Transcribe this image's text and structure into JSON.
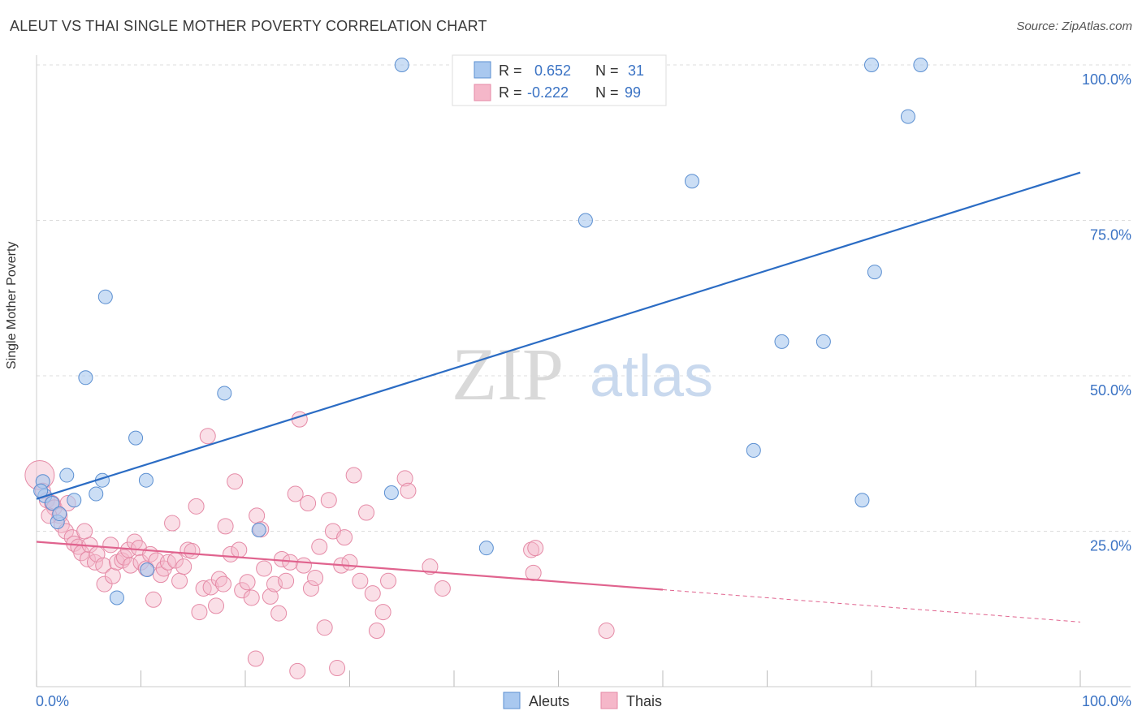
{
  "header": {
    "title": "ALEUT VS THAI SINGLE MOTHER POVERTY CORRELATION CHART",
    "source": "Source: ZipAtlas.com"
  },
  "watermark": {
    "zip": "ZIP",
    "atlas": "atlas"
  },
  "legend_top": {
    "rows": [
      {
        "r_label": "R =",
        "r_value": "0.652",
        "n_label": "N =",
        "n_value": "31",
        "color": "#a9c8ef"
      },
      {
        "r_label": "R =",
        "r_value": "-0.222",
        "n_label": "N =",
        "n_value": "99",
        "color": "#f5b7c9"
      }
    ]
  },
  "legend_bottom": {
    "items": [
      {
        "label": "Aleuts",
        "color": "#a9c8ef"
      },
      {
        "label": "Thais",
        "color": "#f5b7c9"
      }
    ]
  },
  "colors": {
    "aleut_fill": "#a9c8ef",
    "aleut_stroke": "#5b8fd1",
    "aleut_line": "#2b6cc4",
    "thai_fill": "#f5b7c9",
    "thai_stroke": "#e58aa6",
    "thai_line": "#e0638e",
    "axis_label_blue": "#3b73c4"
  },
  "chart_data": {
    "type": "scatter",
    "title": "ALEUT VS THAI SINGLE MOTHER POVERTY CORRELATION CHART",
    "xlabel": "",
    "ylabel": "Single Mother Poverty",
    "xlim": [
      0,
      100
    ],
    "ylim": [
      0,
      100
    ],
    "x_tick_labels": [
      "0.0%",
      "100.0%"
    ],
    "y_tick_labels": [
      "25.0%",
      "50.0%",
      "75.0%",
      "100.0%"
    ],
    "y_ticks": [
      25,
      50,
      75,
      100
    ],
    "grid": true,
    "legend_position": "top-center",
    "series": [
      {
        "name": "Aleuts",
        "r": 0.652,
        "n": 31,
        "trend": {
          "x": [
            0,
            100
          ],
          "y": [
            30.2,
            82.7
          ]
        },
        "points": [
          [
            0.6,
            33.0
          ],
          [
            0.8,
            30.7
          ],
          [
            1.5,
            29.5
          ],
          [
            2.0,
            26.5
          ],
          [
            2.2,
            27.8
          ],
          [
            2.9,
            34.0
          ],
          [
            3.6,
            30.0
          ],
          [
            4.7,
            49.7
          ],
          [
            5.7,
            31.0
          ],
          [
            6.3,
            33.2
          ],
          [
            6.6,
            62.7
          ],
          [
            7.7,
            14.3
          ],
          [
            9.5,
            40.0
          ],
          [
            10.5,
            33.2
          ],
          [
            10.6,
            18.8
          ],
          [
            18.0,
            47.2
          ],
          [
            21.3,
            25.2
          ],
          [
            35.0,
            100.0
          ],
          [
            34.0,
            31.2
          ],
          [
            43.1,
            22.3
          ],
          [
            52.6,
            75.0
          ],
          [
            62.8,
            81.3
          ],
          [
            68.7,
            38.0
          ],
          [
            71.4,
            55.5
          ],
          [
            75.4,
            55.5
          ],
          [
            79.1,
            30.0
          ],
          [
            80.0,
            100.0
          ],
          [
            80.3,
            66.7
          ],
          [
            83.5,
            91.7
          ],
          [
            84.7,
            100.0
          ],
          [
            0.4,
            31.5
          ]
        ]
      },
      {
        "name": "Thais",
        "r": -0.222,
        "n": 99,
        "trend": {
          "x": [
            0,
            60
          ],
          "y": [
            23.3,
            15.6
          ]
        },
        "trend_dashed": {
          "x": [
            60,
            100
          ],
          "y": [
            15.6,
            10.4
          ]
        },
        "points": [
          [
            0.3,
            34.0
          ],
          [
            0.6,
            31.5
          ],
          [
            1.0,
            30.0
          ],
          [
            1.5,
            29.5
          ],
          [
            1.7,
            28.8
          ],
          [
            2.2,
            27.5
          ],
          [
            2.4,
            26.0
          ],
          [
            2.8,
            25.0
          ],
          [
            3.4,
            24.0
          ],
          [
            3.6,
            23.0
          ],
          [
            4.0,
            22.5
          ],
          [
            4.3,
            21.5
          ],
          [
            4.9,
            20.5
          ],
          [
            5.1,
            22.8
          ],
          [
            5.6,
            20.0
          ],
          [
            5.8,
            21.3
          ],
          [
            6.4,
            19.5
          ],
          [
            6.5,
            16.5
          ],
          [
            7.1,
            22.8
          ],
          [
            7.3,
            17.8
          ],
          [
            7.7,
            20.0
          ],
          [
            8.2,
            20.3
          ],
          [
            8.4,
            20.8
          ],
          [
            8.8,
            22.0
          ],
          [
            9.0,
            19.5
          ],
          [
            9.4,
            23.3
          ],
          [
            9.8,
            22.3
          ],
          [
            10.0,
            20.0
          ],
          [
            10.5,
            19.0
          ],
          [
            10.9,
            21.3
          ],
          [
            11.2,
            14.0
          ],
          [
            11.5,
            20.3
          ],
          [
            11.9,
            18.0
          ],
          [
            12.2,
            19.0
          ],
          [
            12.6,
            20.0
          ],
          [
            13.0,
            26.3
          ],
          [
            13.3,
            20.3
          ],
          [
            13.7,
            17.0
          ],
          [
            14.1,
            19.3
          ],
          [
            14.5,
            22.0
          ],
          [
            14.9,
            21.8
          ],
          [
            15.3,
            29.0
          ],
          [
            15.6,
            12.0
          ],
          [
            16.0,
            15.8
          ],
          [
            16.4,
            40.3
          ],
          [
            16.7,
            16.0
          ],
          [
            17.2,
            13.0
          ],
          [
            17.5,
            17.3
          ],
          [
            17.9,
            16.5
          ],
          [
            18.1,
            25.8
          ],
          [
            18.6,
            21.3
          ],
          [
            19.0,
            33.0
          ],
          [
            19.4,
            22.0
          ],
          [
            19.7,
            15.5
          ],
          [
            20.2,
            16.8
          ],
          [
            20.6,
            14.3
          ],
          [
            21.1,
            27.5
          ],
          [
            21.5,
            25.3
          ],
          [
            21.8,
            19.0
          ],
          [
            22.4,
            14.5
          ],
          [
            22.8,
            16.5
          ],
          [
            23.2,
            11.8
          ],
          [
            23.5,
            20.5
          ],
          [
            23.9,
            17.0
          ],
          [
            24.3,
            20.0
          ],
          [
            24.8,
            31.0
          ],
          [
            25.2,
            43.0
          ],
          [
            25.6,
            19.5
          ],
          [
            26.0,
            29.5
          ],
          [
            26.3,
            15.8
          ],
          [
            26.7,
            17.5
          ],
          [
            27.1,
            22.5
          ],
          [
            27.6,
            9.5
          ],
          [
            28.0,
            30.0
          ],
          [
            28.4,
            25.0
          ],
          [
            28.8,
            3.0
          ],
          [
            29.2,
            19.5
          ],
          [
            29.5,
            24.0
          ],
          [
            30.0,
            20.0
          ],
          [
            30.4,
            34.0
          ],
          [
            31.0,
            17.0
          ],
          [
            31.6,
            28.0
          ],
          [
            32.2,
            15.0
          ],
          [
            32.6,
            9.0
          ],
          [
            33.2,
            12.0
          ],
          [
            33.7,
            17.0
          ],
          [
            35.3,
            33.5
          ],
          [
            35.6,
            31.5
          ],
          [
            37.7,
            19.3
          ],
          [
            38.9,
            15.8
          ],
          [
            47.4,
            22.0
          ],
          [
            47.6,
            18.3
          ],
          [
            47.8,
            22.3
          ],
          [
            54.6,
            9.0
          ],
          [
            21.0,
            4.5
          ],
          [
            25.0,
            2.5
          ],
          [
            1.2,
            27.5
          ],
          [
            3.0,
            29.5
          ],
          [
            4.6,
            25.0
          ]
        ]
      }
    ]
  }
}
